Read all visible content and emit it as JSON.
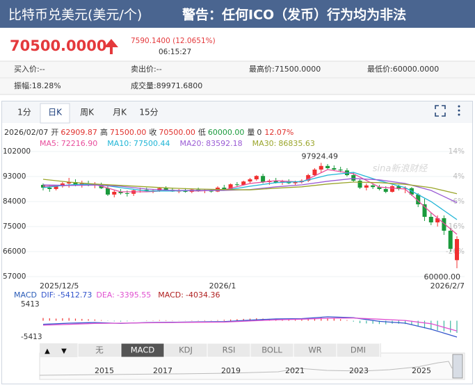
{
  "header": {
    "title": "比特币兑美元(美元/个)",
    "warning": "警告：任何ICO（发币）行为均为非法"
  },
  "quote": {
    "price": "70500.0000",
    "change": "7590.1400 (12.0651%)",
    "time": "06:15:27"
  },
  "stats": [
    [
      {
        "label": "买入价:",
        "value": "--"
      },
      {
        "label": "卖出价:",
        "value": "--"
      },
      {
        "label": "最高价:",
        "value": "71500.0000"
      },
      {
        "label": "最低价:",
        "value": "60000.0000"
      }
    ],
    [
      {
        "label": "振幅:",
        "value": "18.28%"
      },
      {
        "label": "成交量:",
        "value": "89971.6800"
      }
    ]
  ],
  "tabs": {
    "items": [
      "1分",
      "日K",
      "周K",
      "月K",
      "15分"
    ],
    "active": 1
  },
  "kline": {
    "info": {
      "date": "2026/02/07",
      "fields": [
        {
          "label": "开",
          "value": "62909.87",
          "color": "#e0302c"
        },
        {
          "label": "高",
          "value": "71500.00",
          "color": "#e0302c"
        },
        {
          "label": "收",
          "value": "70500.00",
          "color": "#e0302c"
        },
        {
          "label": "低",
          "value": "60000.00",
          "color": "#1a9a3c"
        },
        {
          "label": "量",
          "value": "0",
          "color": "#333333"
        }
      ],
      "change": "12.07%"
    },
    "ma": [
      {
        "name": "MA5:",
        "value": "72216.90",
        "color": "#e84d9c",
        "values": [
          89500,
          89800,
          90200,
          87500,
          87500,
          88000,
          87800,
          88200,
          90500,
          91500,
          91000,
          95500,
          94000,
          89200,
          88500,
          80000,
          72216.9
        ]
      },
      {
        "name": "MA10:",
        "value": "77500.44",
        "color": "#1fb5d6",
        "values": [
          89000,
          90000,
          90300,
          89000,
          87800,
          87800,
          88000,
          88000,
          89500,
          90800,
          91200,
          93500,
          94500,
          91500,
          89000,
          84000,
          77500.44
        ]
      },
      {
        "name": "MA20:",
        "value": "83592.18",
        "color": "#9a5bd4",
        "values": [
          90000,
          89800,
          89900,
          89500,
          88500,
          88000,
          88000,
          88000,
          88300,
          89300,
          90000,
          91300,
          92300,
          91800,
          90500,
          88000,
          83592.18
        ]
      },
      {
        "name": "MA30:",
        "value": "86835.63",
        "color": "#9aa52a",
        "values": [
          92000,
          91000,
          90300,
          89800,
          89300,
          88800,
          88500,
          88300,
          88200,
          88800,
          89300,
          90300,
          91000,
          90800,
          90200,
          89000,
          86835.63
        ]
      }
    ],
    "ylim": [
      55500,
      103500
    ],
    "yticks": [
      102000,
      93000,
      84000,
      75000,
      66000,
      57000
    ],
    "pct_labels": [
      "14%",
      "4%",
      "-6%",
      "-16%",
      "-26%"
    ],
    "watermark": "sina新浪财经",
    "high_label": "97924.49",
    "low_label": "60000.00",
    "dates": [
      "2025/12/5",
      "2026/1",
      "2026/2/7"
    ],
    "up_color": "#f03030",
    "down_color": "#1a9a3c",
    "candles": {
      "open": [
        90000,
        89000,
        88500,
        89500,
        90500,
        91000,
        90000,
        90500,
        89800,
        90200,
        88800,
        86500,
        87500,
        87000,
        86800,
        88000,
        88200,
        87800,
        88000,
        88800,
        88200,
        87600,
        88000,
        87500,
        88300,
        87800,
        87900,
        87600,
        89000,
        88500,
        90200,
        90000,
        91200,
        92000,
        93200,
        91000,
        91500,
        90800,
        91200,
        90600,
        91000,
        91500,
        93500,
        95500,
        96800,
        96000,
        95500,
        95200,
        93500,
        91500,
        89000,
        89800,
        89200,
        88500,
        87500,
        89500,
        88500,
        88800,
        86500,
        83000,
        78500,
        76500,
        78000,
        73500,
        62909.87
      ],
      "high": [
        90500,
        90000,
        90000,
        91000,
        92500,
        92000,
        91500,
        91500,
        91000,
        90800,
        89500,
        88000,
        88500,
        88000,
        88500,
        89000,
        89000,
        88500,
        89200,
        89500,
        89000,
        88500,
        88800,
        88600,
        89000,
        88500,
        88500,
        89500,
        90000,
        90500,
        91000,
        91500,
        92500,
        93500,
        94000,
        92000,
        92500,
        91800,
        92000,
        91500,
        92000,
        94000,
        96000,
        97924.49,
        97500,
        97000,
        96500,
        96000,
        94500,
        92000,
        90500,
        90500,
        90000,
        89500,
        90000,
        90000,
        89500,
        89200,
        87000,
        85000,
        80000,
        79000,
        79000,
        74500,
        71500
      ],
      "low": [
        88000,
        87500,
        88000,
        89000,
        89000,
        89500,
        89000,
        89500,
        88800,
        88500,
        86000,
        85500,
        86500,
        85800,
        86000,
        87200,
        87500,
        87000,
        87500,
        87800,
        87500,
        87000,
        87200,
        87000,
        87500,
        87000,
        87200,
        87400,
        88000,
        88300,
        89500,
        89800,
        90500,
        91500,
        90500,
        90000,
        90500,
        90000,
        90300,
        90000,
        90500,
        91000,
        93000,
        94500,
        95500,
        95000,
        94500,
        93000,
        91000,
        88500,
        88000,
        88500,
        88000,
        87000,
        87200,
        88000,
        87000,
        86000,
        82000,
        77000,
        75500,
        75000,
        72000,
        66000,
        60000
      ],
      "close": [
        89000,
        88500,
        89500,
        90500,
        91000,
        90000,
        90500,
        89800,
        90200,
        88800,
        86500,
        87500,
        87000,
        86800,
        88000,
        88200,
        87800,
        88000,
        88800,
        88200,
        87600,
        88000,
        87500,
        88300,
        87800,
        88100,
        87600,
        89000,
        88500,
        90200,
        90000,
        91200,
        92000,
        93200,
        91000,
        91500,
        90800,
        91200,
        90600,
        91000,
        91500,
        93500,
        95500,
        96800,
        96000,
        95500,
        95200,
        93500,
        91500,
        89000,
        89800,
        89200,
        88500,
        87500,
        89500,
        88500,
        88800,
        86500,
        83000,
        78500,
        76500,
        78000,
        73500,
        67000,
        70500
      ]
    }
  },
  "macd": {
    "title": "MACD",
    "ylim": [
      -5413,
      5413
    ],
    "yticks": [
      5413,
      -5413
    ],
    "lines": [
      {
        "name": "DIF:",
        "value": "-5412.73",
        "color": "#3355cc",
        "values": [
          -1200,
          -800,
          -600,
          -900,
          -600,
          -500,
          -400,
          -300,
          200,
          600,
          700,
          1300,
          1000,
          -200,
          -800,
          -2800,
          -5412.73
        ]
      },
      {
        "name": "DEA:",
        "value": "-3395.55",
        "color": "#e050d0",
        "values": [
          -1500,
          -1200,
          -900,
          -800,
          -700,
          -600,
          -500,
          -450,
          -100,
          300,
          500,
          800,
          900,
          500,
          100,
          -1000,
          -3395.55
        ]
      }
    ],
    "bars": {
      "name": "MACD:",
      "value": "-4034.36",
      "color": "#b02020",
      "values": [
        900,
        800,
        700,
        800,
        900,
        700,
        600,
        500,
        400,
        200,
        -100,
        -200,
        -300,
        -200,
        -100,
        0,
        100,
        100,
        200,
        150,
        100,
        50,
        50,
        100,
        100,
        150,
        100,
        200,
        300,
        400,
        500,
        600,
        700,
        800,
        700,
        600,
        500,
        400,
        300,
        300,
        400,
        600,
        800,
        1000,
        900,
        700,
        500,
        200,
        -300,
        -800,
        -900,
        -1000,
        -1100,
        -1200,
        -1000,
        -1000,
        -1100,
        -1300,
        -1800,
        -2500,
        -3000,
        -3200,
        -3500,
        -3900,
        -4034.36
      ]
    }
  },
  "indicators": {
    "arrows": [
      "▲",
      "▼"
    ],
    "items": [
      "无",
      "MACD",
      "KDJ",
      "RSI",
      "BOLL",
      "WR",
      "DMI"
    ],
    "active": 1
  },
  "timeline": {
    "years": [
      "2015",
      "2017",
      "2019",
      "2021",
      "2023",
      "2025"
    ]
  }
}
